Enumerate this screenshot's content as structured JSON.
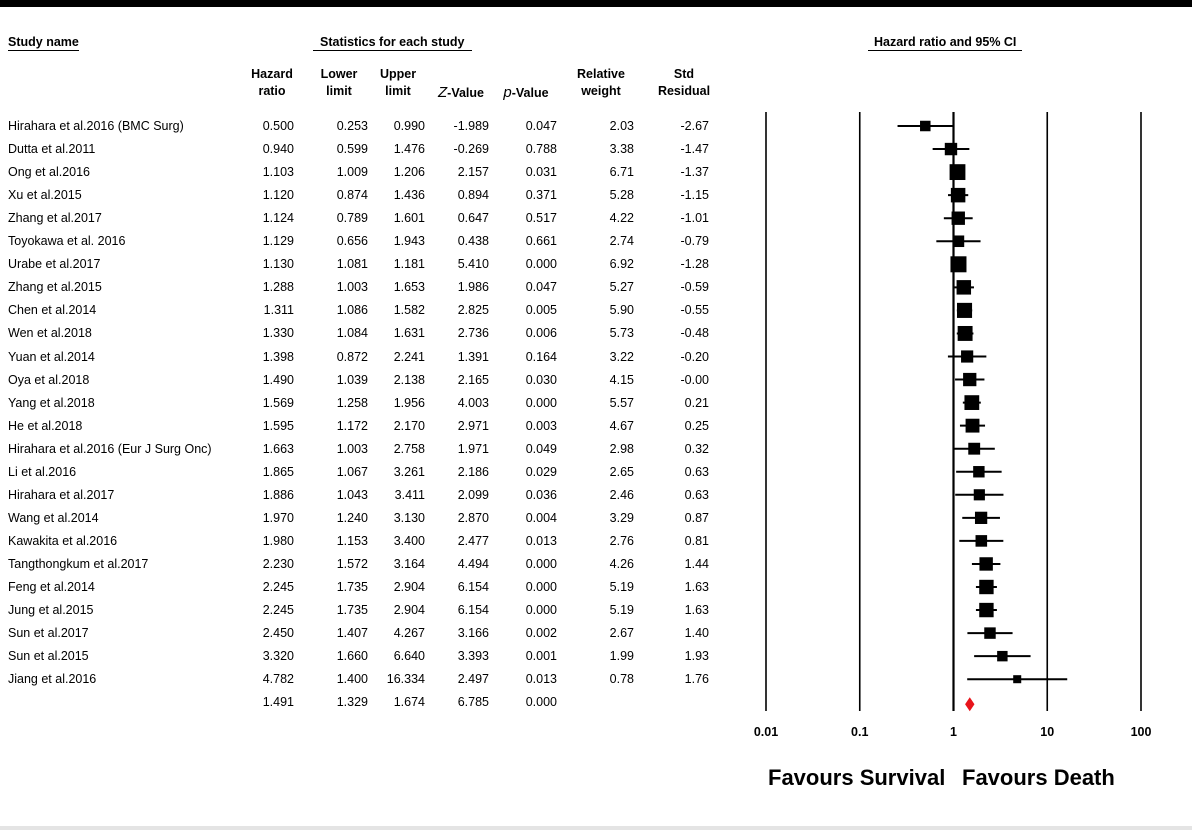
{
  "headers": {
    "study_name": "Study name",
    "statistics": "Statistics for each study",
    "plot_title": "Hazard ratio and 95% CI",
    "columns": [
      {
        "key": "hr",
        "line1": "Hazard",
        "line2": "ratio"
      },
      {
        "key": "lower",
        "line1": "Lower",
        "line2": "limit"
      },
      {
        "key": "upper",
        "line1": "Upper",
        "line2": "limit"
      },
      {
        "key": "z",
        "italic": "Z",
        "rest": "-Value"
      },
      {
        "key": "p",
        "italic": "p",
        "rest": "-Value"
      },
      {
        "key": "weight",
        "line1": "Relative",
        "line2": "weight"
      },
      {
        "key": "resid",
        "line1": "Std",
        "line2": "Residual"
      }
    ]
  },
  "rows": [
    {
      "name": "Hirahara et al.2016 (BMC Surg)",
      "hr": "0.500",
      "lower": "0.253",
      "upper": "0.990",
      "z": "-1.989",
      "p": "0.047",
      "weight": "2.03",
      "resid": "-2.67"
    },
    {
      "name": "Dutta et al.2011",
      "hr": "0.940",
      "lower": "0.599",
      "upper": "1.476",
      "z": "-0.269",
      "p": "0.788",
      "weight": "3.38",
      "resid": "-1.47"
    },
    {
      "name": "Ong et al.2016",
      "hr": "1.103",
      "lower": "1.009",
      "upper": "1.206",
      "z": "2.157",
      "p": "0.031",
      "weight": "6.71",
      "resid": "-1.37"
    },
    {
      "name": "Xu et al.2015",
      "hr": "1.120",
      "lower": "0.874",
      "upper": "1.436",
      "z": "0.894",
      "p": "0.371",
      "weight": "5.28",
      "resid": "-1.15"
    },
    {
      "name": "Zhang et al.2017",
      "hr": "1.124",
      "lower": "0.789",
      "upper": "1.601",
      "z": "0.647",
      "p": "0.517",
      "weight": "4.22",
      "resid": "-1.01"
    },
    {
      "name": "Toyokawa et al. 2016",
      "hr": "1.129",
      "lower": "0.656",
      "upper": "1.943",
      "z": "0.438",
      "p": "0.661",
      "weight": "2.74",
      "resid": "-0.79"
    },
    {
      "name": "Urabe et al.2017",
      "hr": "1.130",
      "lower": "1.081",
      "upper": "1.181",
      "z": "5.410",
      "p": "0.000",
      "weight": "6.92",
      "resid": "-1.28"
    },
    {
      "name": "Zhang et al.2015",
      "hr": "1.288",
      "lower": "1.003",
      "upper": "1.653",
      "z": "1.986",
      "p": "0.047",
      "weight": "5.27",
      "resid": "-0.59"
    },
    {
      "name": "Chen et al.2014",
      "hr": "1.311",
      "lower": "1.086",
      "upper": "1.582",
      "z": "2.825",
      "p": "0.005",
      "weight": "5.90",
      "resid": "-0.55"
    },
    {
      "name": "Wen et al.2018",
      "hr": "1.330",
      "lower": "1.084",
      "upper": "1.631",
      "z": "2.736",
      "p": "0.006",
      "weight": "5.73",
      "resid": "-0.48"
    },
    {
      "name": "Yuan et al.2014",
      "hr": "1.398",
      "lower": "0.872",
      "upper": "2.241",
      "z": "1.391",
      "p": "0.164",
      "weight": "3.22",
      "resid": "-0.20"
    },
    {
      "name": "Oya et al.2018",
      "hr": "1.490",
      "lower": "1.039",
      "upper": "2.138",
      "z": "2.165",
      "p": "0.030",
      "weight": "4.15",
      "resid": "-0.00"
    },
    {
      "name": "Yang et al.2018",
      "hr": "1.569",
      "lower": "1.258",
      "upper": "1.956",
      "z": "4.003",
      "p": "0.000",
      "weight": "5.57",
      "resid": "0.21"
    },
    {
      "name": "He et al.2018",
      "hr": "1.595",
      "lower": "1.172",
      "upper": "2.170",
      "z": "2.971",
      "p": "0.003",
      "weight": "4.67",
      "resid": "0.25"
    },
    {
      "name": "Hirahara et al.2016 (Eur J Surg Onc)",
      "hr": "1.663",
      "lower": "1.003",
      "upper": "2.758",
      "z": "1.971",
      "p": "0.049",
      "weight": "2.98",
      "resid": "0.32"
    },
    {
      "name": "Li et al.2016",
      "hr": "1.865",
      "lower": "1.067",
      "upper": "3.261",
      "z": "2.186",
      "p": "0.029",
      "weight": "2.65",
      "resid": "0.63"
    },
    {
      "name": "Hirahara et al.2017",
      "hr": "1.886",
      "lower": "1.043",
      "upper": "3.411",
      "z": "2.099",
      "p": "0.036",
      "weight": "2.46",
      "resid": "0.63"
    },
    {
      "name": "Wang et al.2014",
      "hr": "1.970",
      "lower": "1.240",
      "upper": "3.130",
      "z": "2.870",
      "p": "0.004",
      "weight": "3.29",
      "resid": "0.87"
    },
    {
      "name": "Kawakita et al.2016",
      "hr": "1.980",
      "lower": "1.153",
      "upper": "3.400",
      "z": "2.477",
      "p": "0.013",
      "weight": "2.76",
      "resid": "0.81"
    },
    {
      "name": "Tangthongkum et al.2017",
      "hr": "2.230",
      "lower": "1.572",
      "upper": "3.164",
      "z": "4.494",
      "p": "0.000",
      "weight": "4.26",
      "resid": "1.44"
    },
    {
      "name": "Feng et al.2014",
      "hr": "2.245",
      "lower": "1.735",
      "upper": "2.904",
      "z": "6.154",
      "p": "0.000",
      "weight": "5.19",
      "resid": "1.63"
    },
    {
      "name": "Jung et al.2015",
      "hr": "2.245",
      "lower": "1.735",
      "upper": "2.904",
      "z": "6.154",
      "p": "0.000",
      "weight": "5.19",
      "resid": "1.63"
    },
    {
      "name": "Sun et al.2017",
      "hr": "2.450",
      "lower": "1.407",
      "upper": "4.267",
      "z": "3.166",
      "p": "0.002",
      "weight": "2.67",
      "resid": "1.40"
    },
    {
      "name": "Sun et al.2015",
      "hr": "3.320",
      "lower": "1.660",
      "upper": "6.640",
      "z": "3.393",
      "p": "0.001",
      "weight": "1.99",
      "resid": "1.93"
    },
    {
      "name": "Jiang et al.2016",
      "hr": "4.782",
      "lower": "1.400",
      "upper": "16.334",
      "z": "2.497",
      "p": "0.013",
      "weight": "0.78",
      "resid": "1.76"
    }
  ],
  "summary": {
    "hr": "1.491",
    "lower": "1.329",
    "upper": "1.674",
    "z": "6.785",
    "p": "0.000"
  },
  "favours_left": "Favours Survival",
  "favours_right": "Favours Death",
  "colors": {
    "study_marker": "#000000",
    "summary_diamond": "#e8151b"
  },
  "chart_data": {
    "type": "forest",
    "title": "Hazard ratio and 95% CI",
    "x_scale": "log",
    "xlim": [
      0.01,
      100
    ],
    "x_ticks": [
      "0.01",
      "0.1",
      "1",
      "10",
      "100"
    ],
    "x_tick_values": [
      0.01,
      0.1,
      1,
      10,
      100
    ],
    "reference_line": 1,
    "studies": [
      {
        "name": "Hirahara et al.2016 (BMC Surg)",
        "hr": 0.5,
        "lower": 0.253,
        "upper": 0.99,
        "weight": 2.03
      },
      {
        "name": "Dutta et al.2011",
        "hr": 0.94,
        "lower": 0.599,
        "upper": 1.476,
        "weight": 3.38
      },
      {
        "name": "Ong et al.2016",
        "hr": 1.103,
        "lower": 1.009,
        "upper": 1.206,
        "weight": 6.71
      },
      {
        "name": "Xu et al.2015",
        "hr": 1.12,
        "lower": 0.874,
        "upper": 1.436,
        "weight": 5.28
      },
      {
        "name": "Zhang et al.2017",
        "hr": 1.124,
        "lower": 0.789,
        "upper": 1.601,
        "weight": 4.22
      },
      {
        "name": "Toyokawa et al. 2016",
        "hr": 1.129,
        "lower": 0.656,
        "upper": 1.943,
        "weight": 2.74
      },
      {
        "name": "Urabe et al.2017",
        "hr": 1.13,
        "lower": 1.081,
        "upper": 1.181,
        "weight": 6.92
      },
      {
        "name": "Zhang et al.2015",
        "hr": 1.288,
        "lower": 1.003,
        "upper": 1.653,
        "weight": 5.27
      },
      {
        "name": "Chen et al.2014",
        "hr": 1.311,
        "lower": 1.086,
        "upper": 1.582,
        "weight": 5.9
      },
      {
        "name": "Wen et al.2018",
        "hr": 1.33,
        "lower": 1.084,
        "upper": 1.631,
        "weight": 5.73
      },
      {
        "name": "Yuan et al.2014",
        "hr": 1.398,
        "lower": 0.872,
        "upper": 2.241,
        "weight": 3.22
      },
      {
        "name": "Oya et al.2018",
        "hr": 1.49,
        "lower": 1.039,
        "upper": 2.138,
        "weight": 4.15
      },
      {
        "name": "Yang et al.2018",
        "hr": 1.569,
        "lower": 1.258,
        "upper": 1.956,
        "weight": 5.57
      },
      {
        "name": "He et al.2018",
        "hr": 1.595,
        "lower": 1.172,
        "upper": 2.17,
        "weight": 4.67
      },
      {
        "name": "Hirahara et al.2016 (Eur J Surg Onc)",
        "hr": 1.663,
        "lower": 1.003,
        "upper": 2.758,
        "weight": 2.98
      },
      {
        "name": "Li et al.2016",
        "hr": 1.865,
        "lower": 1.067,
        "upper": 3.261,
        "weight": 2.65
      },
      {
        "name": "Hirahara et al.2017",
        "hr": 1.886,
        "lower": 1.043,
        "upper": 3.411,
        "weight": 2.46
      },
      {
        "name": "Wang et al.2014",
        "hr": 1.97,
        "lower": 1.24,
        "upper": 3.13,
        "weight": 3.29
      },
      {
        "name": "Kawakita et al.2016",
        "hr": 1.98,
        "lower": 1.153,
        "upper": 3.4,
        "weight": 2.76
      },
      {
        "name": "Tangthongkum et al.2017",
        "hr": 2.23,
        "lower": 1.572,
        "upper": 3.164,
        "weight": 4.26
      },
      {
        "name": "Feng et al.2014",
        "hr": 2.245,
        "lower": 1.735,
        "upper": 2.904,
        "weight": 5.19
      },
      {
        "name": "Jung et al.2015",
        "hr": 2.245,
        "lower": 1.735,
        "upper": 2.904,
        "weight": 5.19
      },
      {
        "name": "Sun et al.2017",
        "hr": 2.45,
        "lower": 1.407,
        "upper": 4.267,
        "weight": 2.67
      },
      {
        "name": "Sun et al.2015",
        "hr": 3.32,
        "lower": 1.66,
        "upper": 6.64,
        "weight": 1.99
      },
      {
        "name": "Jiang et al.2016",
        "hr": 4.782,
        "lower": 1.4,
        "upper": 16.334,
        "weight": 0.78
      }
    ],
    "pooled": {
      "hr": 1.491,
      "lower": 1.329,
      "upper": 1.674
    }
  }
}
